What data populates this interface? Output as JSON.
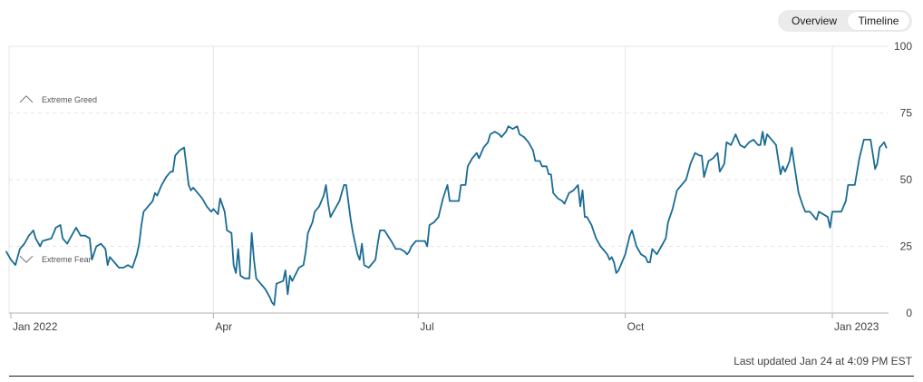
{
  "toggle": {
    "overview_label": "Overview",
    "timeline_label": "Timeline"
  },
  "footer": {
    "last_updated": "Last updated Jan 24 at 4:09 PM EST"
  },
  "colors": {
    "line": "#1a6b94",
    "grid": "#e6e6e6",
    "axis": "#b0b0b0",
    "text": "#404040"
  },
  "chart_data": {
    "type": "line",
    "ylim": [
      0,
      100
    ],
    "y_ticks": [
      0,
      25,
      50,
      75,
      100
    ],
    "x_ticks": [
      {
        "label": "Jan 2022",
        "day": 0
      },
      {
        "label": "Apr",
        "day": 90
      },
      {
        "label": "Jul",
        "day": 181
      },
      {
        "label": "Oct",
        "day": 273
      },
      {
        "label": "Jan 2023",
        "day": 365
      }
    ],
    "x_range": [
      0,
      388
    ],
    "annotations": [
      {
        "label": "Extreme Greed",
        "y": 80,
        "icon": "chevron-up-icon"
      },
      {
        "label": "Extreme Fear",
        "y": 20,
        "icon": "chevron-down-icon"
      }
    ],
    "series": [
      {
        "points": [
          [
            -2,
            23
          ],
          [
            0,
            20
          ],
          [
            2,
            18
          ],
          [
            4,
            24
          ],
          [
            6,
            26
          ],
          [
            8,
            29
          ],
          [
            10,
            31
          ],
          [
            11,
            28
          ],
          [
            13,
            25
          ],
          [
            14,
            27
          ],
          [
            18,
            28
          ],
          [
            20,
            32
          ],
          [
            22,
            33
          ],
          [
            23,
            28
          ],
          [
            25,
            26
          ],
          [
            27,
            29
          ],
          [
            29,
            32
          ],
          [
            31,
            29
          ],
          [
            33,
            29
          ],
          [
            35,
            28
          ],
          [
            36,
            20
          ],
          [
            38,
            25
          ],
          [
            40,
            26
          ],
          [
            42,
            24
          ],
          [
            43,
            18
          ],
          [
            44,
            21
          ],
          [
            46,
            19
          ],
          [
            48,
            17
          ],
          [
            50,
            17
          ],
          [
            52,
            18
          ],
          [
            54,
            17
          ],
          [
            56,
            22
          ],
          [
            57,
            26
          ],
          [
            58,
            33
          ],
          [
            59,
            38
          ],
          [
            61,
            40
          ],
          [
            63,
            42
          ],
          [
            64,
            45
          ],
          [
            65,
            44
          ],
          [
            67,
            48
          ],
          [
            69,
            51
          ],
          [
            71,
            53
          ],
          [
            72,
            53
          ],
          [
            73,
            59
          ],
          [
            75,
            61
          ],
          [
            77,
            62
          ],
          [
            78,
            55
          ],
          [
            79,
            48
          ],
          [
            80,
            46
          ],
          [
            81,
            47
          ],
          [
            83,
            45
          ],
          [
            85,
            43
          ],
          [
            87,
            40
          ],
          [
            89,
            38
          ],
          [
            90,
            39
          ],
          [
            92,
            37
          ],
          [
            93,
            43
          ],
          [
            95,
            38
          ],
          [
            96,
            31
          ],
          [
            98,
            30
          ],
          [
            99,
            18
          ],
          [
            100,
            15
          ],
          [
            101,
            24
          ],
          [
            102,
            14
          ],
          [
            104,
            13
          ],
          [
            106,
            13
          ],
          [
            107,
            30
          ],
          [
            108,
            20
          ],
          [
            109,
            13
          ],
          [
            111,
            11
          ],
          [
            113,
            9
          ],
          [
            115,
            6
          ],
          [
            116,
            4
          ],
          [
            117,
            3
          ],
          [
            118,
            11
          ],
          [
            121,
            12
          ],
          [
            122,
            16
          ],
          [
            123,
            7
          ],
          [
            124,
            14
          ],
          [
            125,
            12
          ],
          [
            128,
            17
          ],
          [
            130,
            18
          ],
          [
            131,
            23
          ],
          [
            132,
            30
          ],
          [
            134,
            34
          ],
          [
            135,
            38
          ],
          [
            137,
            40
          ],
          [
            139,
            44
          ],
          [
            140,
            48
          ],
          [
            141,
            41
          ],
          [
            142,
            36
          ],
          [
            144,
            39
          ],
          [
            146,
            42
          ],
          [
            148,
            48
          ],
          [
            149,
            48
          ],
          [
            151,
            35
          ],
          [
            152,
            30
          ],
          [
            154,
            22
          ],
          [
            155,
            20
          ],
          [
            156,
            26
          ],
          [
            157,
            18
          ],
          [
            159,
            17
          ],
          [
            162,
            20
          ],
          [
            163,
            26
          ],
          [
            164,
            31
          ],
          [
            166,
            31
          ],
          [
            169,
            27
          ],
          [
            171,
            24
          ],
          [
            173,
            24
          ],
          [
            175,
            23
          ],
          [
            176,
            22
          ],
          [
            177,
            23
          ],
          [
            178,
            25
          ],
          [
            180,
            27
          ],
          [
            182,
            27
          ],
          [
            184,
            27
          ],
          [
            185,
            25
          ],
          [
            186,
            33
          ],
          [
            188,
            34
          ],
          [
            190,
            36
          ],
          [
            192,
            43
          ],
          [
            194,
            48
          ],
          [
            195,
            42
          ],
          [
            197,
            42
          ],
          [
            199,
            42
          ],
          [
            200,
            48
          ],
          [
            202,
            48
          ],
          [
            203,
            55
          ],
          [
            205,
            58
          ],
          [
            207,
            60
          ],
          [
            208,
            58
          ],
          [
            210,
            62
          ],
          [
            212,
            64
          ],
          [
            213,
            67
          ],
          [
            215,
            68
          ],
          [
            217,
            67
          ],
          [
            218,
            66
          ],
          [
            220,
            68
          ],
          [
            221,
            70
          ],
          [
            223,
            69
          ],
          [
            225,
            70
          ],
          [
            226,
            67
          ],
          [
            228,
            66
          ],
          [
            230,
            64
          ],
          [
            232,
            61
          ],
          [
            233,
            57
          ],
          [
            235,
            57
          ],
          [
            236,
            55
          ],
          [
            238,
            55
          ],
          [
            239,
            52
          ],
          [
            240,
            52
          ],
          [
            241,
            45
          ],
          [
            243,
            43
          ],
          [
            245,
            42
          ],
          [
            246,
            41
          ],
          [
            248,
            45
          ],
          [
            250,
            46
          ],
          [
            252,
            48
          ],
          [
            253,
            40
          ],
          [
            254,
            46
          ],
          [
            255,
            36
          ],
          [
            256,
            36
          ],
          [
            258,
            33
          ],
          [
            260,
            28
          ],
          [
            262,
            25
          ],
          [
            263,
            24
          ],
          [
            265,
            22
          ],
          [
            266,
            20
          ],
          [
            267,
            21
          ],
          [
            268,
            19
          ],
          [
            269,
            15
          ],
          [
            270,
            16
          ],
          [
            271,
            18
          ],
          [
            273,
            22
          ],
          [
            275,
            29
          ],
          [
            276,
            31
          ],
          [
            278,
            25
          ],
          [
            280,
            22
          ],
          [
            282,
            21
          ],
          [
            283,
            19
          ],
          [
            284,
            19
          ],
          [
            285,
            24
          ],
          [
            287,
            22
          ],
          [
            289,
            25
          ],
          [
            291,
            28
          ],
          [
            292,
            34
          ],
          [
            294,
            39
          ],
          [
            296,
            46
          ],
          [
            298,
            48
          ],
          [
            300,
            50
          ],
          [
            302,
            56
          ],
          [
            304,
            60
          ],
          [
            306,
            59
          ],
          [
            307,
            59
          ],
          [
            308,
            51
          ],
          [
            310,
            57
          ],
          [
            312,
            58
          ],
          [
            314,
            60
          ],
          [
            315,
            53
          ],
          [
            317,
            56
          ],
          [
            318,
            64
          ],
          [
            320,
            63
          ],
          [
            322,
            67
          ],
          [
            324,
            63
          ],
          [
            326,
            62
          ],
          [
            328,
            64
          ],
          [
            330,
            65
          ],
          [
            332,
            63
          ],
          [
            333,
            63
          ],
          [
            334,
            68
          ],
          [
            335,
            63
          ],
          [
            336,
            67
          ],
          [
            338,
            65
          ],
          [
            340,
            63
          ],
          [
            342,
            52
          ],
          [
            343,
            55
          ],
          [
            344,
            53
          ],
          [
            345,
            55
          ],
          [
            346,
            57
          ],
          [
            347,
            62
          ],
          [
            348,
            56
          ],
          [
            350,
            45
          ],
          [
            352,
            40
          ],
          [
            353,
            38
          ],
          [
            355,
            38
          ],
          [
            356,
            37
          ],
          [
            357,
            36
          ],
          [
            358,
            35
          ],
          [
            359,
            38
          ],
          [
            361,
            37
          ],
          [
            363,
            36
          ],
          [
            364,
            32
          ],
          [
            365,
            38
          ],
          [
            367,
            38
          ],
          [
            369,
            38
          ],
          [
            371,
            42
          ],
          [
            372,
            48
          ],
          [
            374,
            48
          ],
          [
            375,
            48
          ],
          [
            377,
            58
          ],
          [
            379,
            65
          ],
          [
            382,
            65
          ],
          [
            384,
            54
          ],
          [
            385,
            56
          ],
          [
            386,
            62
          ],
          [
            388,
            64
          ],
          [
            389,
            62
          ]
        ]
      }
    ]
  }
}
